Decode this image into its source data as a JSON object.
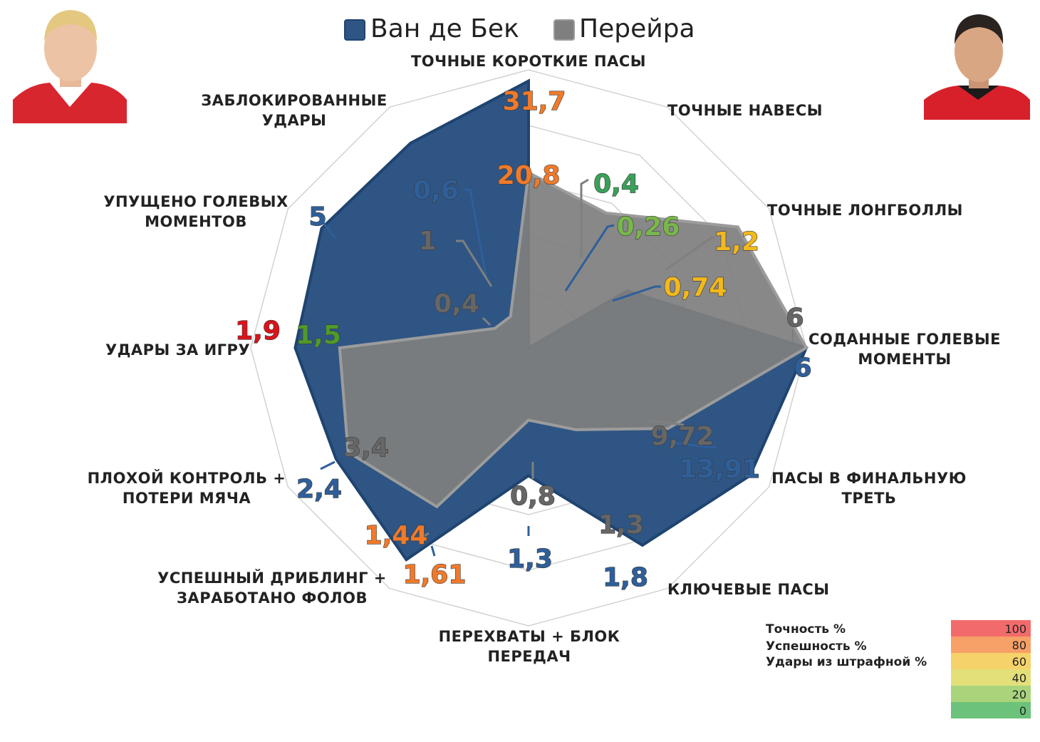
{
  "colors": {
    "player1": "#2e5584",
    "player1_stroke": "#1f4470",
    "player2": "#7f7f7f",
    "player2_stroke": "#9c9c9c",
    "grid": "#d2d2d2"
  },
  "legend": {
    "player1_name": "Ван де Бек",
    "player2_name": "Перейра"
  },
  "chart_data": {
    "type": "radar",
    "series": [
      {
        "name": "Ван де Бек",
        "values": [
          0.96,
          0.0,
          0.41,
          1.0,
          0.92,
          0.82,
          0.46,
          0.88,
          0.8,
          0.84,
          0.86,
          0.85
        ]
      },
      {
        "name": "Перейра",
        "values": [
          0.63,
          0.56,
          0.87,
          1.0,
          0.58,
          0.34,
          0.26,
          0.66,
          0.75,
          0.68,
          0.14,
          0.13
        ]
      }
    ],
    "axes": [
      {
        "label_lines": [
          "ТОЧНЫЕ КОРОТКИЕ ПАСЫ"
        ],
        "p1": "31,7",
        "p2": "20,8",
        "p1_color": "#f07a2a",
        "p2_color": "#f07a2a"
      },
      {
        "label_lines": [
          "ТОЧНЫЕ НАВЕСЫ"
        ],
        "p1": "0,26",
        "p2": "0,4",
        "p1_color": "#79b64c",
        "p2_color": "#3aa05a"
      },
      {
        "label_lines": [
          "ТОЧНЫЕ ЛОНГБОЛЛЫ"
        ],
        "p1": "0,74",
        "p2": "1,2",
        "p1_color": "#f2b81c",
        "p2_color": "#f2b81c"
      },
      {
        "label_lines": [
          "СОДАННЫЕ ГОЛЕВЫЕ",
          "МОМЕНТЫ"
        ],
        "p1": "6",
        "p2": "6",
        "p1_color": "#2e5f9a",
        "p2_color": "#666666"
      },
      {
        "label_lines": [
          "ПАСЫ В ФИНАЛЬНУЮ",
          "ТРЕТЬ"
        ],
        "p1": "13,91",
        "p2": "9,72",
        "p1_color": "#2e5f9a",
        "p2_color": "#666666"
      },
      {
        "label_lines": [
          "КЛЮЧЕВЫЕ ПАСЫ"
        ],
        "p1": "1,8",
        "p2": "1,3",
        "p1_color": "#2e5f9a",
        "p2_color": "#666666"
      },
      {
        "label_lines": [
          "ПЕРЕХВАТЫ + БЛОК",
          "ПЕРЕДАЧ"
        ],
        "p1": "1,3",
        "p2": "0,8",
        "p1_color": "#2e5f9a",
        "p2_color": "#666666"
      },
      {
        "label_lines": [
          "УСПЕШНЫЙ ДРИБЛИНГ +",
          "ЗАРАБОТАНО ФОЛОВ"
        ],
        "p1": "1,61",
        "p2": "1,44",
        "p1_color": "#f07a2a",
        "p2_color": "#f07a2a"
      },
      {
        "label_lines": [
          "ПЛОХОЙ КОНТРОЛЬ +",
          "ПОТЕРИ МЯЧА"
        ],
        "p1": "2,4",
        "p2": "3,4",
        "p1_color": "#2e5f9a",
        "p2_color": "#666666"
      },
      {
        "label_lines": [
          "УДАРЫ ЗА ИГРУ"
        ],
        "p1": "1,9",
        "p2": "1,5",
        "p1_color": "#d9141b",
        "p2_color": "#4f9a2a"
      },
      {
        "label_lines": [
          "УПУЩЕНО ГОЛЕВЫХ",
          "МОМЕНТОВ"
        ],
        "p1": "5",
        "p2": "1",
        "p1_color": "#2e5f9a",
        "p2_color": "#666666"
      },
      {
        "label_lines": [
          "ЗАБЛОКИРОВАННЫЕ",
          "УДАРЫ"
        ],
        "p1": "0,6",
        "p2": "0,4",
        "p1_color": "#2e5f9a",
        "p2_color": "#666666"
      }
    ]
  },
  "scale": {
    "labels": [
      "Точность %",
      "Успешность %",
      "Удары из штрафной %"
    ],
    "steps": [
      {
        "value": "100",
        "color": "#f26b6b"
      },
      {
        "value": "80",
        "color": "#f7a067"
      },
      {
        "value": "60",
        "color": "#f5d36a"
      },
      {
        "value": "40",
        "color": "#e3e07a"
      },
      {
        "value": "20",
        "color": "#a9d47c"
      },
      {
        "value": "0",
        "color": "#6cc27a"
      }
    ]
  }
}
